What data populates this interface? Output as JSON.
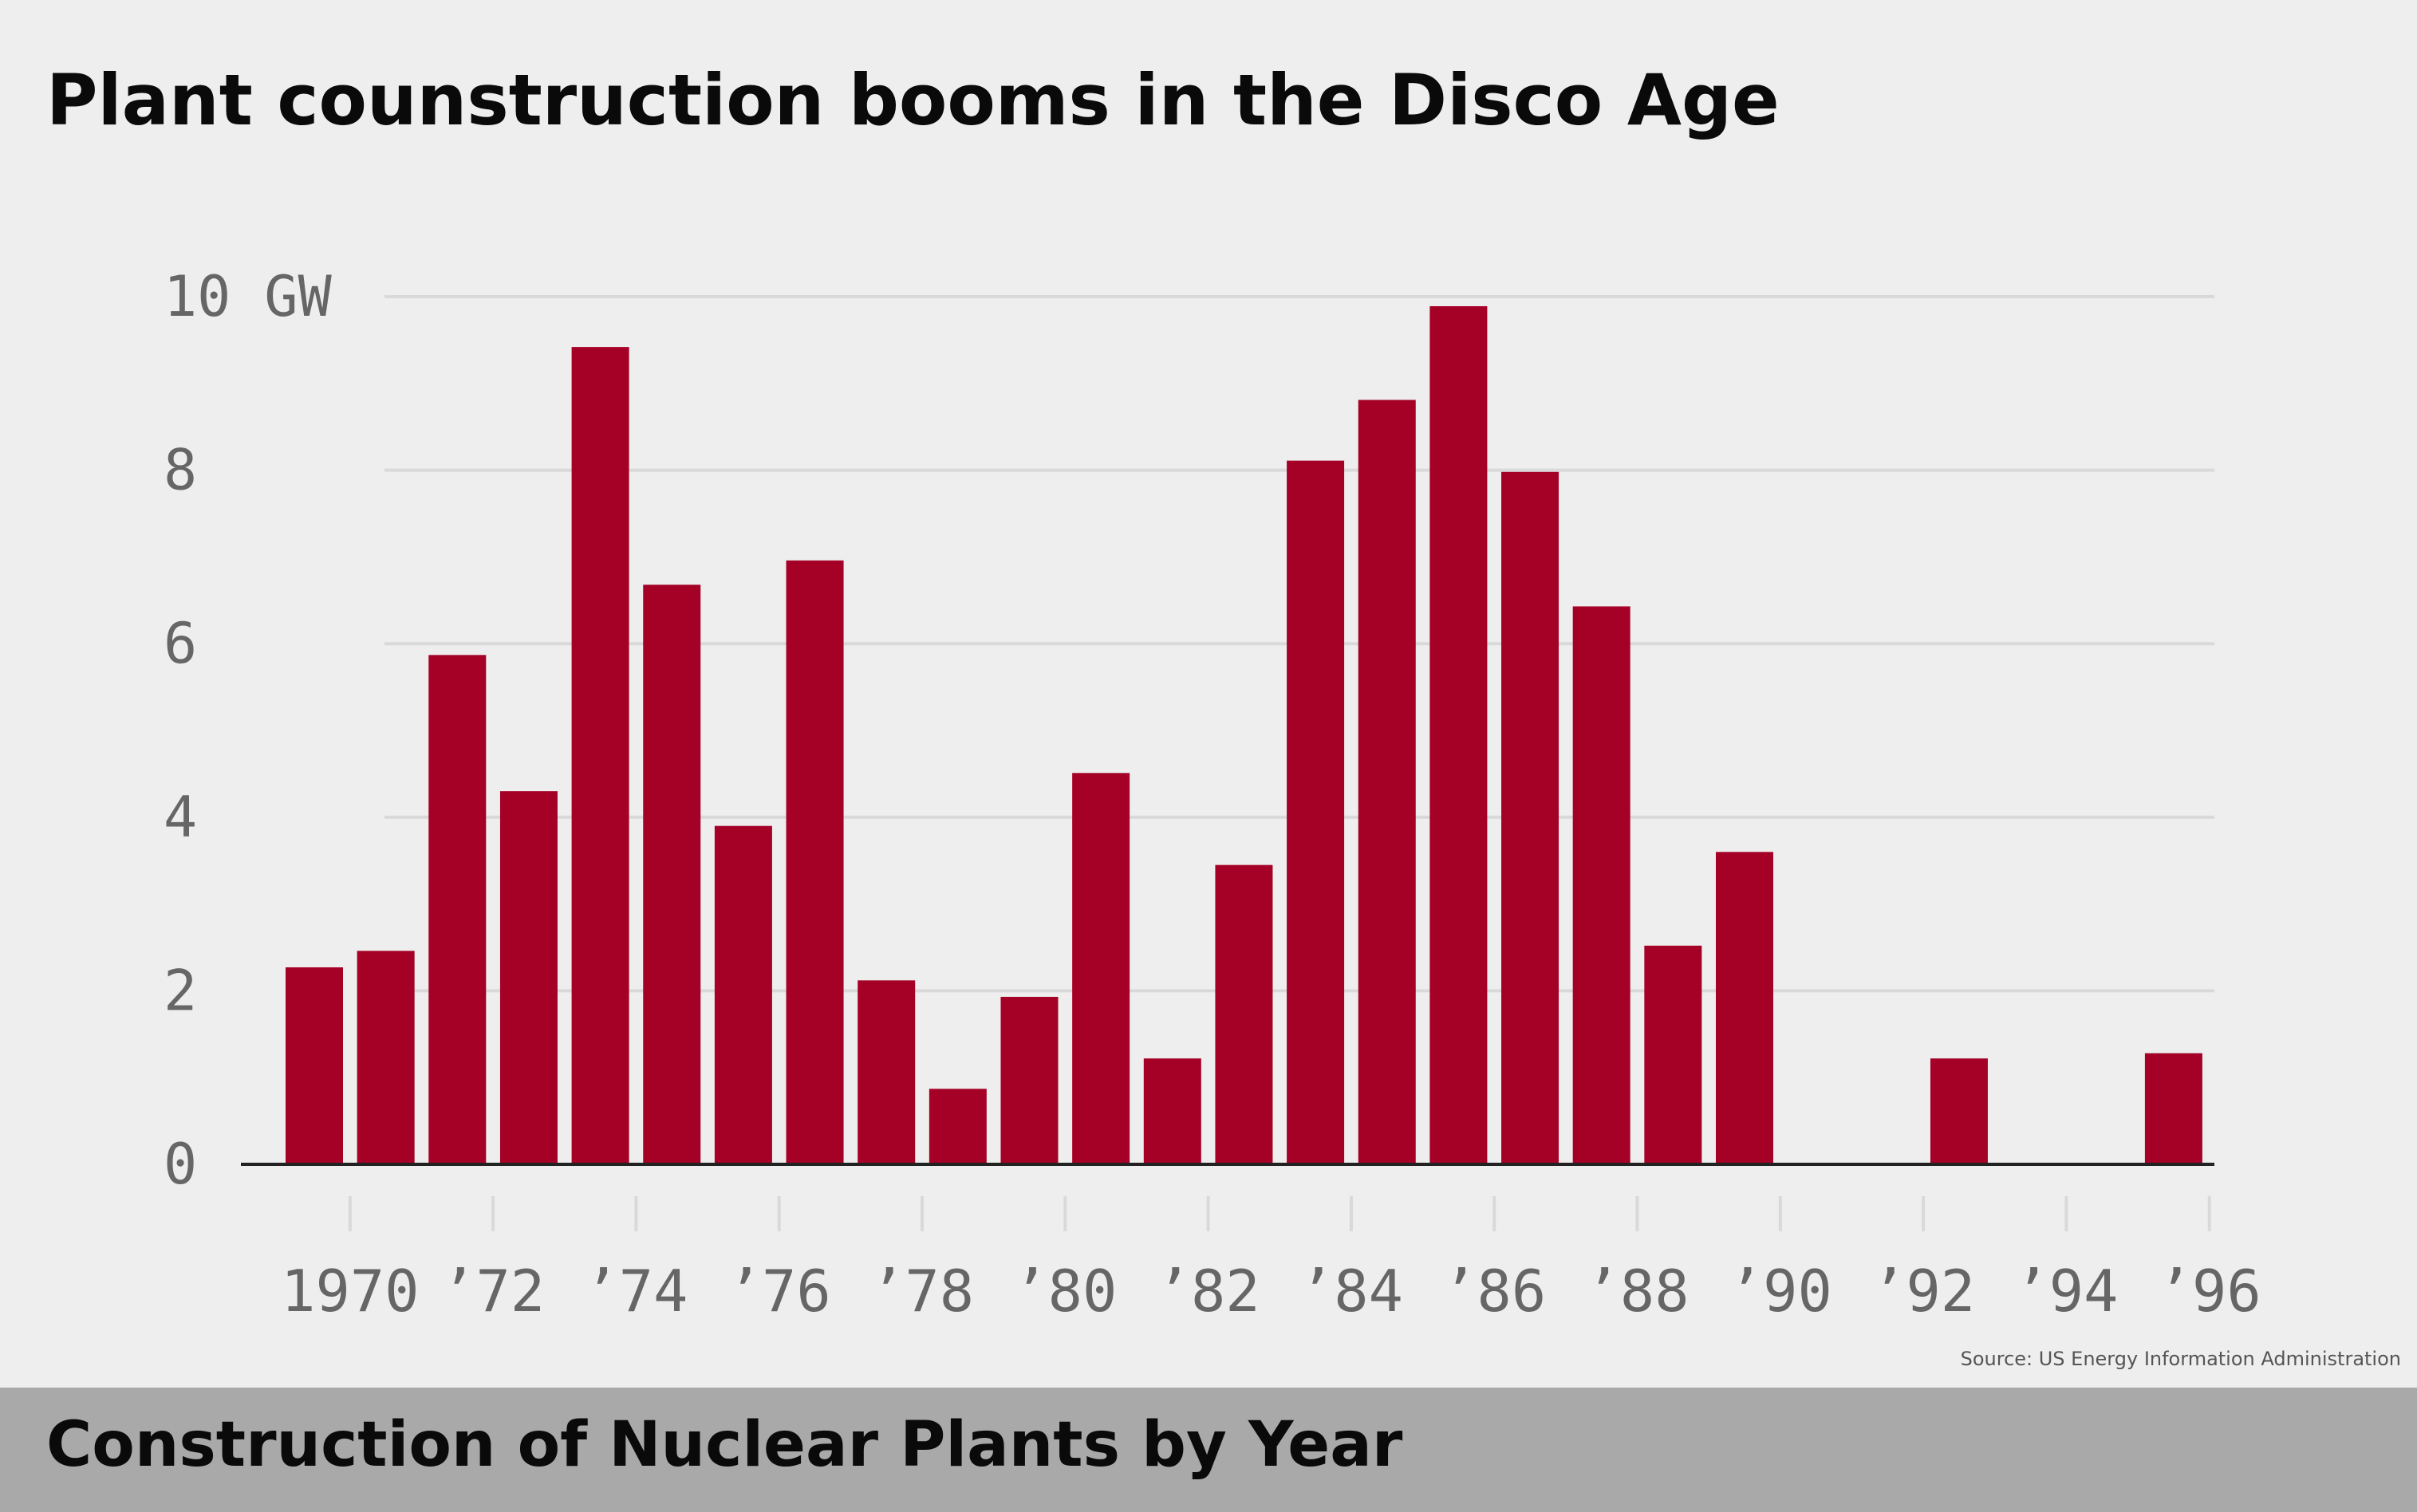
{
  "colors": {
    "background": "#eeeeee",
    "bar": "#a50026",
    "grid": "#d9d9d9",
    "axis": "#222222",
    "tick_text": "#666666",
    "footer": "#a9a9a9"
  },
  "header": {
    "title": "Plant counstruction booms in the Disco Age"
  },
  "source": "Source: US Energy Information Administration",
  "footer": {
    "subtitle": "Construction of Nuclear Plants by Year"
  },
  "chart_data": {
    "type": "bar",
    "title": "Plant counstruction booms in the Disco Age",
    "xlabel": "",
    "ylabel": "",
    "y_unit": "GW",
    "ylim": [
      0,
      10
    ],
    "yticks": [
      0,
      2,
      4,
      6,
      8,
      10
    ],
    "ytick_labels": [
      "0",
      "2",
      "4",
      "6",
      "8",
      "10  GW"
    ],
    "grid": true,
    "categories": [
      1970,
      1971,
      1972,
      1973,
      1974,
      1975,
      1976,
      1977,
      1978,
      1979,
      1980,
      1981,
      1982,
      1983,
      1984,
      1985,
      1986,
      1987,
      1988,
      1989,
      1990,
      1991,
      1992,
      1993,
      1994,
      1995,
      1996
    ],
    "values": [
      2.27,
      2.46,
      5.87,
      4.3,
      9.42,
      6.68,
      3.9,
      6.96,
      2.12,
      0.87,
      1.93,
      4.51,
      1.22,
      3.45,
      8.11,
      8.81,
      9.89,
      7.98,
      6.43,
      2.52,
      3.6,
      0,
      0,
      1.22,
      0,
      0,
      1.28
    ],
    "xtick_positions": [
      1971,
      1973,
      1975,
      1977,
      1979,
      1981,
      1983,
      1985,
      1987,
      1989,
      1991,
      1993,
      1995,
      1997
    ],
    "xtick_labels": [
      "1970",
      "’72",
      "’74",
      "’76",
      "’78",
      "’80",
      "’82",
      "’84",
      "’86",
      "’88",
      "’90",
      "’92",
      "’94",
      "’96"
    ]
  }
}
